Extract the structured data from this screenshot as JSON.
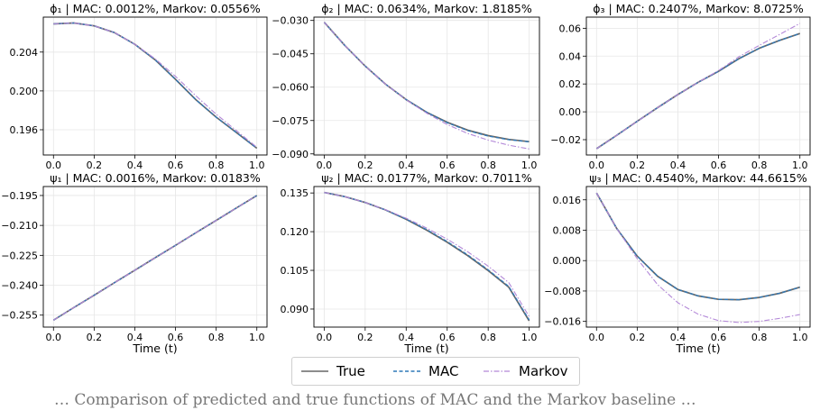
{
  "colors": {
    "true": "#666666",
    "mac": "#2f78b7",
    "markov": "#b388d8",
    "grid": "#e6e6e6"
  },
  "legend": {
    "true_label": "True",
    "mac_label": "MAC",
    "markov_label": "Markov"
  },
  "caption": "… Comparison of predicted and true functions of MAC and the Markov baseline …",
  "chart_data": [
    {
      "type": "line",
      "title": "ϕ₁ | MAC: 0.0012%, Markov: 0.0556%",
      "xlabel": "",
      "xlim": [
        -0.05,
        1.05
      ],
      "ylim": [
        0.1934,
        0.2076
      ],
      "xticks": [
        0.0,
        0.2,
        0.4,
        0.6,
        0.8,
        1.0
      ],
      "yticks": [
        0.196,
        0.2,
        0.204
      ],
      "ytick_labels": [
        "0.196",
        "0.200",
        "0.204"
      ],
      "x": [
        0.0,
        0.1,
        0.2,
        0.3,
        0.4,
        0.5,
        0.6,
        0.7,
        0.8,
        0.9,
        1.0
      ],
      "series": [
        {
          "name": "True",
          "values": [
            0.2069,
            0.207,
            0.2067,
            0.206,
            0.2048,
            0.2032,
            0.2012,
            0.1991,
            0.1973,
            0.1957,
            0.1941
          ]
        },
        {
          "name": "MAC",
          "values": [
            0.2069,
            0.207,
            0.2067,
            0.206,
            0.2048,
            0.2032,
            0.2012,
            0.1991,
            0.1973,
            0.1957,
            0.1941
          ]
        },
        {
          "name": "Markov",
          "values": [
            0.2069,
            0.207,
            0.2067,
            0.206,
            0.2048,
            0.2033,
            0.2015,
            0.1995,
            0.1976,
            0.1959,
            0.1942
          ]
        }
      ]
    },
    {
      "type": "line",
      "title": "ϕ₂ | MAC: 0.0634%, Markov: 1.8185%",
      "xlabel": "",
      "xlim": [
        -0.05,
        1.05
      ],
      "ylim": [
        -0.0905,
        -0.0285
      ],
      "xticks": [
        0.0,
        0.2,
        0.4,
        0.6,
        0.8,
        1.0
      ],
      "yticks": [
        -0.03,
        -0.045,
        -0.06,
        -0.075,
        -0.09
      ],
      "ytick_labels": [
        "−0.030",
        "−0.045",
        "−0.060",
        "−0.075",
        "−0.090"
      ],
      "x": [
        0.0,
        0.1,
        0.2,
        0.3,
        0.4,
        0.5,
        0.6,
        0.7,
        0.8,
        0.9,
        1.0
      ],
      "series": [
        {
          "name": "True",
          "values": [
            -0.0308,
            -0.0412,
            -0.0505,
            -0.0587,
            -0.0656,
            -0.0713,
            -0.0758,
            -0.0793,
            -0.0818,
            -0.0835,
            -0.0845
          ]
        },
        {
          "name": "MAC",
          "values": [
            -0.0308,
            -0.0412,
            -0.0505,
            -0.0587,
            -0.0656,
            -0.0713,
            -0.076,
            -0.0795,
            -0.082,
            -0.0836,
            -0.0846
          ]
        },
        {
          "name": "Markov",
          "values": [
            -0.0308,
            -0.0412,
            -0.0505,
            -0.0587,
            -0.0657,
            -0.0717,
            -0.0768,
            -0.0808,
            -0.0838,
            -0.0861,
            -0.0878
          ]
        }
      ]
    },
    {
      "type": "line",
      "title": "ϕ₃ | MAC: 0.2407%, Markov: 8.0725%",
      "xlabel": "",
      "xlim": [
        -0.05,
        1.05
      ],
      "ylim": [
        -0.031,
        0.068
      ],
      "xticks": [
        0.0,
        0.2,
        0.4,
        0.6,
        0.8,
        1.0
      ],
      "yticks": [
        -0.02,
        0.0,
        0.02,
        0.04,
        0.06
      ],
      "ytick_labels": [
        "−0.02",
        "0.00",
        "0.02",
        "0.04",
        "0.06"
      ],
      "x": [
        0.0,
        0.1,
        0.2,
        0.3,
        0.4,
        0.5,
        0.6,
        0.7,
        0.8,
        0.9,
        1.0
      ],
      "series": [
        {
          "name": "True",
          "values": [
            -0.0265,
            -0.0168,
            -0.0068,
            0.003,
            0.0124,
            0.0212,
            0.0291,
            0.0382,
            0.0456,
            0.0513,
            0.0562
          ]
        },
        {
          "name": "MAC",
          "values": [
            -0.0265,
            -0.0168,
            -0.0068,
            0.003,
            0.0124,
            0.0212,
            0.0291,
            0.0382,
            0.0456,
            0.0513,
            0.0562
          ]
        },
        {
          "name": "Markov",
          "values": [
            -0.0265,
            -0.0168,
            -0.0068,
            0.003,
            0.0124,
            0.0212,
            0.0296,
            0.0395,
            0.0477,
            0.0556,
            0.0635
          ]
        }
      ]
    },
    {
      "type": "line",
      "title": "ψ₁ | MAC: 0.0016%, Markov: 0.0183%",
      "xlabel": "Time (t)",
      "xlim": [
        -0.05,
        1.05
      ],
      "ylim": [
        -0.261,
        -0.1905
      ],
      "xticks": [
        0.0,
        0.2,
        0.4,
        0.6,
        0.8,
        1.0
      ],
      "yticks": [
        -0.195,
        -0.21,
        -0.225,
        -0.24,
        -0.255
      ],
      "ytick_labels": [
        "−0.195",
        "−0.210",
        "−0.225",
        "−0.240",
        "−0.255"
      ],
      "x": [
        0.0,
        0.1,
        0.2,
        0.3,
        0.4,
        0.5,
        0.6,
        0.7,
        0.8,
        0.9,
        1.0
      ],
      "series": [
        {
          "name": "True",
          "values": [
            -0.2575,
            -0.2512,
            -0.245,
            -0.2387,
            -0.2325,
            -0.2262,
            -0.22,
            -0.2137,
            -0.2075,
            -0.2012,
            -0.195
          ]
        },
        {
          "name": "MAC",
          "values": [
            -0.2575,
            -0.2512,
            -0.245,
            -0.2387,
            -0.2325,
            -0.2262,
            -0.22,
            -0.2137,
            -0.2075,
            -0.2012,
            -0.195
          ]
        },
        {
          "name": "Markov",
          "values": [
            -0.2575,
            -0.2512,
            -0.245,
            -0.2387,
            -0.2325,
            -0.2262,
            -0.22,
            -0.2137,
            -0.2075,
            -0.2012,
            -0.195
          ]
        }
      ]
    },
    {
      "type": "line",
      "title": "ψ₂ | MAC: 0.0177%, Markov: 0.7011%",
      "xlabel": "Time (t)",
      "xlim": [
        -0.05,
        1.05
      ],
      "ylim": [
        0.083,
        0.1375
      ],
      "xticks": [
        0.0,
        0.2,
        0.4,
        0.6,
        0.8,
        1.0
      ],
      "yticks": [
        0.135,
        0.12,
        0.105,
        0.09
      ],
      "ytick_labels": [
        "0.135",
        "0.120",
        "0.105",
        "0.090"
      ],
      "x": [
        0.0,
        0.1,
        0.2,
        0.3,
        0.4,
        0.5,
        0.6,
        0.7,
        0.8,
        0.9,
        1.0
      ],
      "series": [
        {
          "name": "True",
          "values": [
            0.1352,
            0.1336,
            0.1313,
            0.1284,
            0.1248,
            0.1206,
            0.1159,
            0.1107,
            0.1049,
            0.0985,
            0.0854
          ]
        },
        {
          "name": "MAC",
          "values": [
            0.1352,
            0.1336,
            0.1313,
            0.1284,
            0.1249,
            0.1208,
            0.1162,
            0.111,
            0.1052,
            0.0988,
            0.0858
          ]
        },
        {
          "name": "Markov",
          "values": [
            0.1352,
            0.1336,
            0.1313,
            0.1285,
            0.1252,
            0.1214,
            0.1171,
            0.1122,
            0.1066,
            0.1003,
            0.0871
          ]
        }
      ]
    },
    {
      "type": "line",
      "title": "ψ₃ | MAC: 0.4540%, Markov: 44.6615%",
      "xlabel": "Time (t)",
      "xlim": [
        -0.05,
        1.05
      ],
      "ylim": [
        -0.0175,
        0.0195
      ],
      "xticks": [
        0.0,
        0.2,
        0.4,
        0.6,
        0.8,
        1.0
      ],
      "yticks": [
        0.016,
        0.008,
        0.0,
        -0.008,
        -0.016
      ],
      "ytick_labels": [
        "0.016",
        "0.008",
        "0.000",
        "−0.008",
        "−0.016"
      ],
      "x": [
        0.0,
        0.1,
        0.2,
        0.3,
        0.4,
        0.5,
        0.6,
        0.7,
        0.8,
        0.9,
        1.0
      ],
      "series": [
        {
          "name": "True",
          "values": [
            0.0178,
            0.0084,
            0.0012,
            -0.0041,
            -0.0076,
            -0.0093,
            -0.0102,
            -0.0103,
            -0.0097,
            -0.0086,
            -0.007
          ]
        },
        {
          "name": "MAC",
          "values": [
            0.0178,
            0.0084,
            0.0012,
            -0.0041,
            -0.0076,
            -0.0093,
            -0.0102,
            -0.0103,
            -0.0097,
            -0.0086,
            -0.007
          ]
        },
        {
          "name": "Markov",
          "values": [
            0.0178,
            0.0084,
            0.0005,
            -0.0063,
            -0.0111,
            -0.0141,
            -0.0158,
            -0.0163,
            -0.016,
            -0.0152,
            -0.0142
          ]
        }
      ]
    }
  ]
}
